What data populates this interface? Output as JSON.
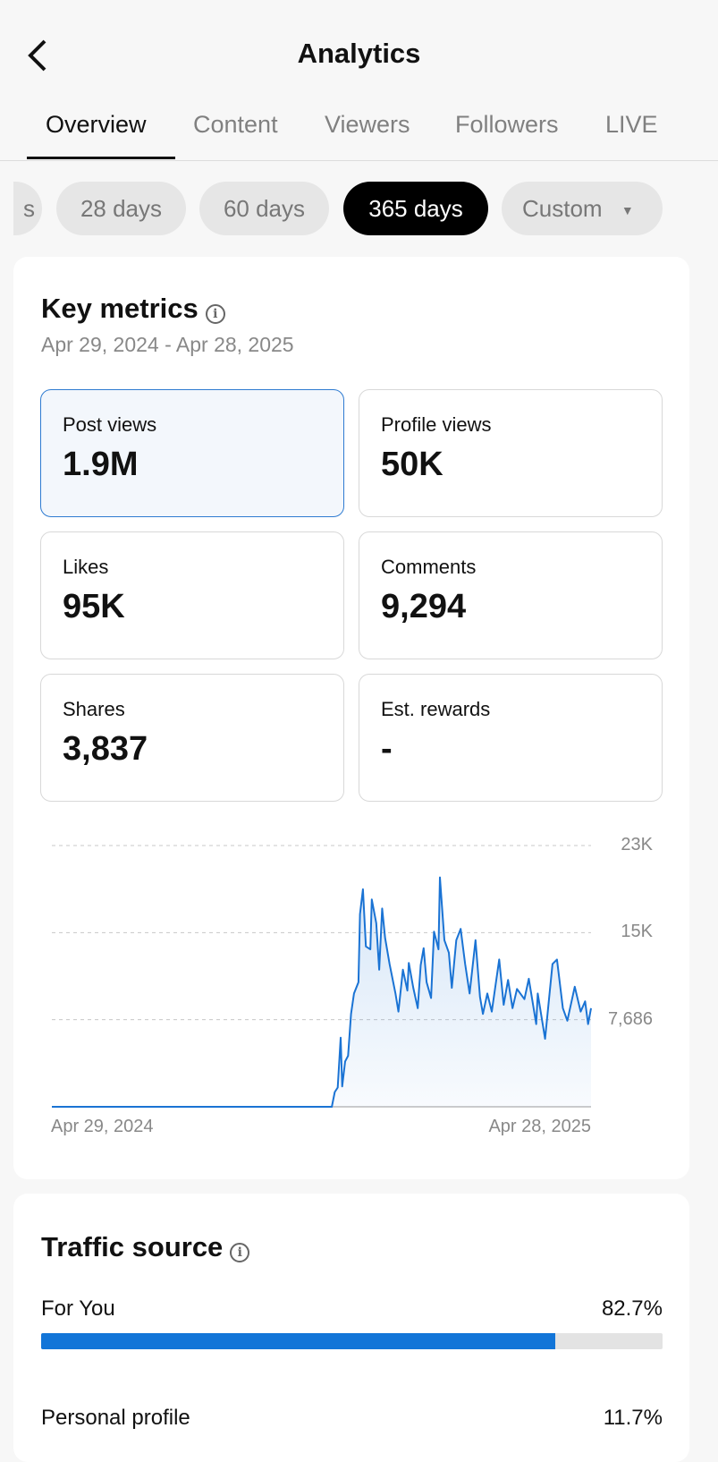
{
  "header": {
    "title": "Analytics",
    "back_icon": "chevron-left-icon"
  },
  "tabs": [
    {
      "label": "Overview",
      "active": true
    },
    {
      "label": "Content"
    },
    {
      "label": "Viewers"
    },
    {
      "label": "Followers"
    },
    {
      "label": "LIVE"
    }
  ],
  "chips": [
    {
      "label": "s"
    },
    {
      "label": "28 days"
    },
    {
      "label": "60 days"
    },
    {
      "label": "365 days",
      "active": true
    },
    {
      "label": "Custom"
    }
  ],
  "key_metrics": {
    "title": "Key metrics",
    "date_range": "Apr 29, 2024 - Apr 28, 2025",
    "metrics": [
      {
        "label": "Post views",
        "value": "1.9M",
        "selected": true
      },
      {
        "label": "Profile views",
        "value": "50K"
      },
      {
        "label": "Likes",
        "value": "95K"
      },
      {
        "label": "Comments",
        "value": "9,294"
      },
      {
        "label": "Shares",
        "value": "3,837"
      },
      {
        "label": "Est. rewards",
        "value": "-"
      }
    ]
  },
  "chart_data": {
    "type": "area",
    "series_name": "Post views",
    "x_start_label": "Apr 29, 2024",
    "x_end_label": "Apr 28, 2025",
    "xlim": [
      0,
      364
    ],
    "y_ticks": [
      {
        "value": 23058,
        "label": "23K"
      },
      {
        "value": 15372,
        "label": "15K"
      },
      {
        "value": 7686,
        "label": "7,686"
      }
    ],
    "ylim": [
      0,
      23058
    ],
    "color": "#1a73d4",
    "points": [
      [
        0,
        0
      ],
      [
        189,
        0
      ],
      [
        191,
        1300
      ],
      [
        193,
        1700
      ],
      [
        195,
        6100
      ],
      [
        196,
        1800
      ],
      [
        198,
        4000
      ],
      [
        200,
        4500
      ],
      [
        202,
        8200
      ],
      [
        204,
        10000
      ],
      [
        207,
        11000
      ],
      [
        208,
        17000
      ],
      [
        210,
        19200
      ],
      [
        212,
        14150
      ],
      [
        215,
        13900
      ],
      [
        216,
        18300
      ],
      [
        219,
        16200
      ],
      [
        221,
        12100
      ],
      [
        223,
        17500
      ],
      [
        225,
        14900
      ],
      [
        228,
        12600
      ],
      [
        232,
        10000
      ],
      [
        234,
        8400
      ],
      [
        237,
        12100
      ],
      [
        240,
        10260
      ],
      [
        241,
        12700
      ],
      [
        244,
        10500
      ],
      [
        247,
        8700
      ],
      [
        249,
        12500
      ],
      [
        251,
        14000
      ],
      [
        253,
        11000
      ],
      [
        256,
        9600
      ],
      [
        258,
        15450
      ],
      [
        261,
        13900
      ],
      [
        262,
        20250
      ],
      [
        265,
        14700
      ],
      [
        268,
        13600
      ],
      [
        270,
        10500
      ],
      [
        273,
        14700
      ],
      [
        276,
        15700
      ],
      [
        279,
        12600
      ],
      [
        282,
        10000
      ],
      [
        286,
        14700
      ],
      [
        289,
        9700
      ],
      [
        291,
        8200
      ],
      [
        294,
        10000
      ],
      [
        297,
        8400
      ],
      [
        302,
        13000
      ],
      [
        305,
        9000
      ],
      [
        308,
        11200
      ],
      [
        311,
        8700
      ],
      [
        314,
        10400
      ],
      [
        319,
        9500
      ],
      [
        322,
        11300
      ],
      [
        327,
        7300
      ],
      [
        328,
        10000
      ],
      [
        333,
        6000
      ],
      [
        338,
        12600
      ],
      [
        341,
        13000
      ],
      [
        345,
        8700
      ],
      [
        348,
        7600
      ],
      [
        353,
        10600
      ],
      [
        357,
        8400
      ],
      [
        360,
        9300
      ],
      [
        362,
        7300
      ],
      [
        364,
        8700
      ]
    ]
  },
  "traffic_source": {
    "title": "Traffic source",
    "rows": [
      {
        "label": "For You",
        "value": "82.7%",
        "fraction": 0.827
      },
      {
        "label": "Personal profile",
        "value": "11.7%",
        "fraction": 0.117
      }
    ]
  },
  "colors": {
    "accent": "#1275d8",
    "selected_border": "#2e7bd1"
  }
}
